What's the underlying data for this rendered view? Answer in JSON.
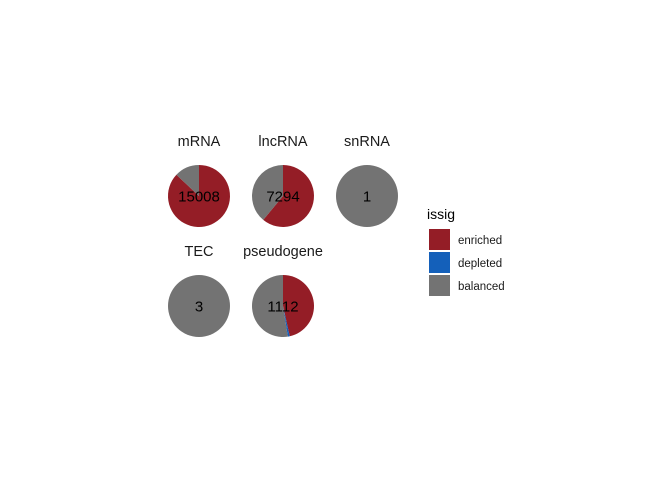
{
  "chart_data": {
    "type": "pie",
    "facet_layout": "2 rows x 3 columns",
    "legend": {
      "title": "issig",
      "placement": "right",
      "entries": [
        {
          "label": "enriched",
          "color": "#941D26"
        },
        {
          "label": "depleted",
          "color": "#1460BA"
        },
        {
          "label": "balanced",
          "color": "#737373"
        }
      ]
    },
    "panels": [
      {
        "title": "mRNA",
        "total_label": "15008",
        "slices": [
          {
            "category": "enriched",
            "value": 0.87
          },
          {
            "category": "depleted",
            "value": 0.0
          },
          {
            "category": "balanced",
            "value": 0.13
          }
        ]
      },
      {
        "title": "lncRNA",
        "total_label": "7294",
        "slices": [
          {
            "category": "enriched",
            "value": 0.61
          },
          {
            "category": "depleted",
            "value": 0.0
          },
          {
            "category": "balanced",
            "value": 0.39
          }
        ]
      },
      {
        "title": "snRNA",
        "total_label": "1",
        "slices": [
          {
            "category": "enriched",
            "value": 0.0
          },
          {
            "category": "depleted",
            "value": 0.0
          },
          {
            "category": "balanced",
            "value": 1.0
          }
        ]
      },
      {
        "title": "TEC",
        "total_label": "3",
        "slices": [
          {
            "category": "enriched",
            "value": 0.0
          },
          {
            "category": "depleted",
            "value": 0.0
          },
          {
            "category": "balanced",
            "value": 1.0
          }
        ]
      },
      {
        "title": "pseudogene",
        "total_label": "1112",
        "slices": [
          {
            "category": "enriched",
            "value": 0.465
          },
          {
            "category": "depleted",
            "value": 0.01
          },
          {
            "category": "balanced",
            "value": 0.525
          }
        ]
      }
    ]
  }
}
